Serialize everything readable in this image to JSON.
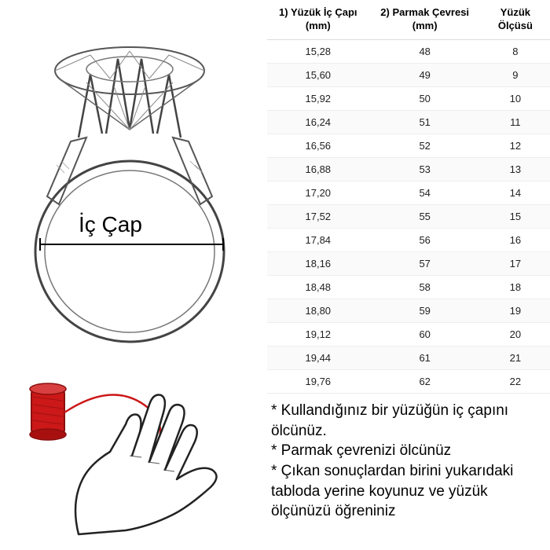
{
  "ring_label": "İç Çap",
  "table": {
    "columns": [
      "1) Yüzük İç Çapı (mm)",
      "2) Parmak Çevresi (mm)",
      "Yüzük Ölçüsü"
    ],
    "rows": [
      [
        "15,28",
        "48",
        "8"
      ],
      [
        "15,60",
        "49",
        "9"
      ],
      [
        "15,92",
        "50",
        "10"
      ],
      [
        "16,24",
        "51",
        "11"
      ],
      [
        "16,56",
        "52",
        "12"
      ],
      [
        "16,88",
        "53",
        "13"
      ],
      [
        "17,20",
        "54",
        "14"
      ],
      [
        "17,52",
        "55",
        "15"
      ],
      [
        "17,84",
        "56",
        "16"
      ],
      [
        "18,16",
        "57",
        "17"
      ],
      [
        "18,48",
        "58",
        "18"
      ],
      [
        "18,80",
        "59",
        "19"
      ],
      [
        "19,12",
        "60",
        "20"
      ],
      [
        "19,44",
        "61",
        "21"
      ],
      [
        "19,76",
        "62",
        "22"
      ]
    ],
    "header_fontsize": 13,
    "cell_fontsize": 13,
    "border_color": "#eeeeee",
    "header_border_color": "#dddddd",
    "alt_row_bg": "#fafafa",
    "text_color": "#222222"
  },
  "instructions": {
    "line1": "* Kullandığınız bir yüzüğün iç çapını ölcünüz.",
    "line2": "* Parmak çevrenizi ölcünüz",
    "line3": "* Çıkan sonuçlardan birini yukarıdaki tabloda yerine koyunuz ve yüzük ölçünüzü öğreniniz",
    "fontsize": 19,
    "color": "#000000"
  },
  "colors": {
    "background": "#ffffff",
    "thread_red": "#cc1818",
    "thread_dark": "#8a0f0f",
    "sketch_stroke": "#333333"
  }
}
